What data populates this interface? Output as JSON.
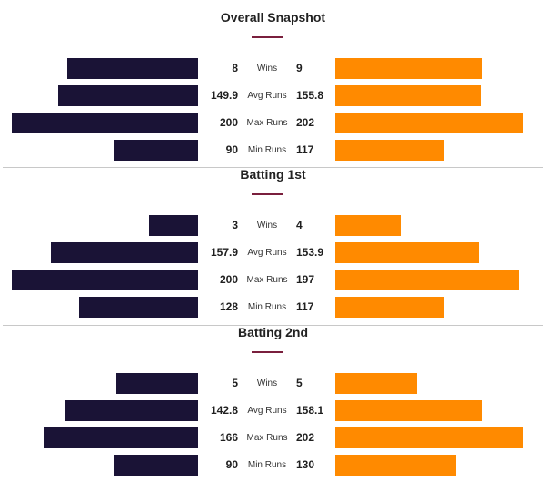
{
  "chart_data": [
    {
      "type": "bar",
      "title": "Overall Snapshot",
      "categories": [
        "Wins",
        "Avg Runs",
        "Max Runs",
        "Min Runs"
      ],
      "series": [
        {
          "values": [
            8,
            149.9,
            200,
            90
          ],
          "color": "#1a1336",
          "labels": [
            "8",
            "149.9",
            "200",
            "90"
          ]
        },
        {
          "values": [
            9,
            155.8,
            202,
            117
          ],
          "color": "#ff8a00",
          "labels": [
            "9",
            "155.8",
            "202",
            "117"
          ]
        }
      ]
    },
    {
      "type": "bar",
      "title": "Batting 1st",
      "categories": [
        "Wins",
        "Avg Runs",
        "Max Runs",
        "Min Runs"
      ],
      "series": [
        {
          "values": [
            3,
            157.9,
            200,
            128
          ],
          "color": "#1a1336",
          "labels": [
            "3",
            "157.9",
            "200",
            "128"
          ]
        },
        {
          "values": [
            4,
            153.9,
            197,
            117
          ],
          "color": "#ff8a00",
          "labels": [
            "4",
            "153.9",
            "197",
            "117"
          ]
        }
      ]
    },
    {
      "type": "bar",
      "title": "Batting 2nd",
      "categories": [
        "Wins",
        "Avg Runs",
        "Max Runs",
        "Min Runs"
      ],
      "series": [
        {
          "values": [
            5,
            142.8,
            166,
            90
          ],
          "color": "#1a1336",
          "labels": [
            "5",
            "142.8",
            "166",
            "90"
          ]
        },
        {
          "values": [
            5,
            158.1,
            202,
            130
          ],
          "color": "#ff8a00",
          "labels": [
            "5",
            "158.1",
            "202",
            "130"
          ]
        }
      ]
    }
  ]
}
